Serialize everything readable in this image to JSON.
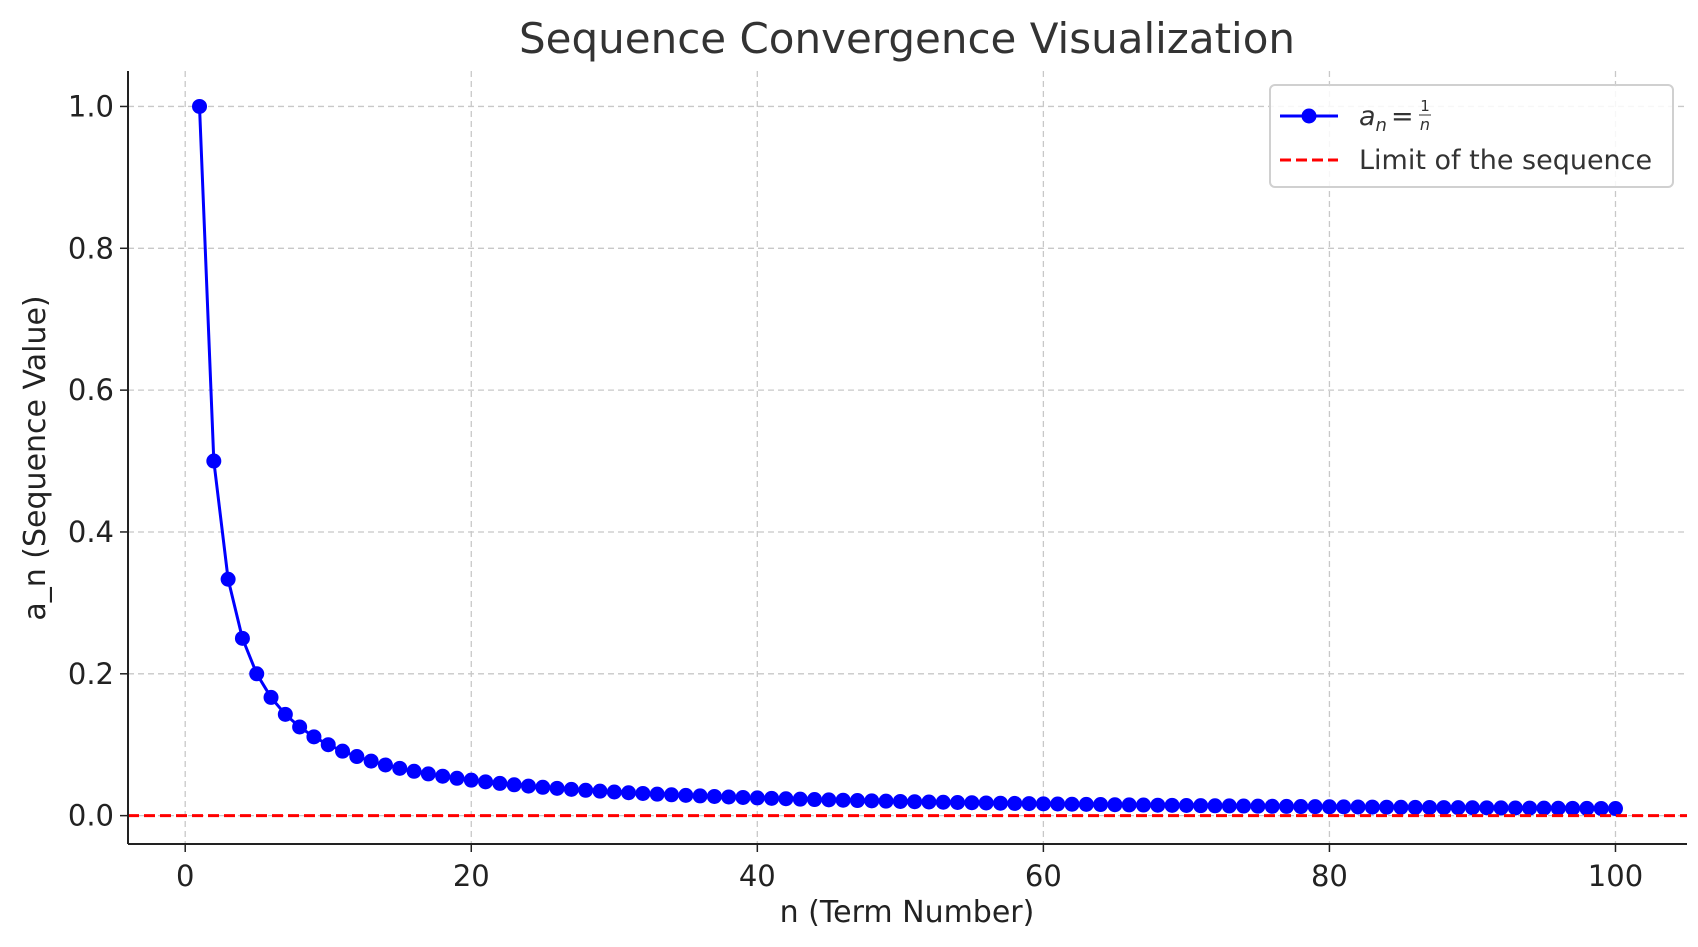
{
  "chart_data": {
    "type": "line",
    "title": "Sequence Convergence Visualization",
    "xlabel": "n (Term Number)",
    "ylabel": "a_n (Sequence Value)",
    "xlim": [
      -4,
      105
    ],
    "ylim": [
      -0.04,
      1.05
    ],
    "xticks": [
      "0",
      "20",
      "40",
      "60",
      "80",
      "100"
    ],
    "yticks": [
      "0.0",
      "0.2",
      "0.4",
      "0.6",
      "0.8",
      "1.0"
    ],
    "grid": true,
    "legend_position": "top-right",
    "series": [
      {
        "name": "a_n = 1/n",
        "formula": "1/n",
        "n_start": 1,
        "n_end": 100,
        "color": "#0000ff",
        "style": "solid line with circle markers"
      },
      {
        "name": "Limit of the sequence",
        "value": 0,
        "color": "#ff0000",
        "style": "dashed"
      }
    ]
  },
  "legend": {
    "series1_label_main": "a",
    "series1_label_sub": "n",
    "series1_label_eq": "=",
    "series1_label_num": "1",
    "series1_label_den": "n",
    "series2_label": "Limit of the sequence"
  }
}
